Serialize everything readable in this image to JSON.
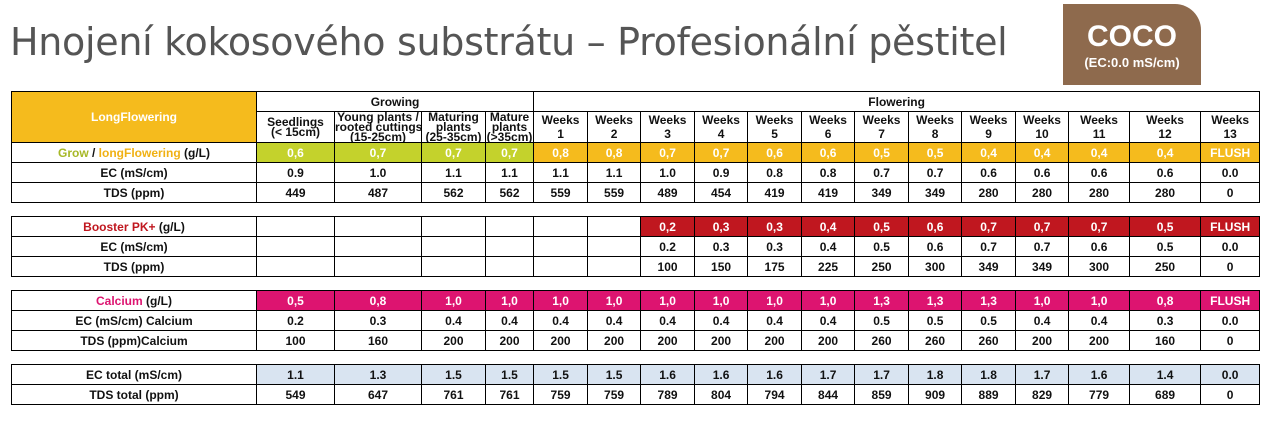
{
  "title": "Hnojení kokosového substrátu – Profesionální pěstitel",
  "badge": {
    "main": "COCO",
    "sub": "(EC:0.0 mS/cm)"
  },
  "brand": "LongFlowering",
  "groups": {
    "growing": "Growing",
    "flowering": "Flowering"
  },
  "stages": [
    "Seedlings\n(< 15cm)",
    "Young plants /\nrooted cuttings\n(15-25cm)",
    "Maturing\nplants\n(25-35cm)",
    "Mature\nplants\n(>35cm)"
  ],
  "weeks": [
    "Weeks\n1",
    "Weeks\n2",
    "Weeks\n3",
    "Weeks\n4",
    "Weeks\n5",
    "Weeks\n6",
    "Weeks\n7",
    "Weeks\n8",
    "Weeks\n9",
    "Weeks\n10",
    "Weeks\n11",
    "Weeks\n12",
    "Weeks\n13"
  ],
  "grow": {
    "label_a": "Grow",
    "label_sep": " / ",
    "label_b": "longFlowering",
    "label_unit": " (g/L)",
    "values": [
      "0,6",
      "0,7",
      "0,7",
      "0,7",
      "0,8",
      "0,8",
      "0,7",
      "0,7",
      "0,6",
      "0,6",
      "0,5",
      "0,5",
      "0,4",
      "0,4",
      "0,4",
      "0,4",
      "FLUSH"
    ],
    "ec_label": "EC (mS/cm)",
    "ec": [
      "0.9",
      "1.0",
      "1.1",
      "1.1",
      "1.1",
      "1.1",
      "1.0",
      "0.9",
      "0.8",
      "0.8",
      "0.7",
      "0.7",
      "0.6",
      "0.6",
      "0.6",
      "0.6",
      "0.0"
    ],
    "tds_label": "TDS (ppm)",
    "tds": [
      "449",
      "487",
      "562",
      "562",
      "559",
      "559",
      "489",
      "454",
      "419",
      "419",
      "349",
      "349",
      "280",
      "280",
      "280",
      "280",
      "0"
    ]
  },
  "booster": {
    "label_a": "Booster PK+",
    "label_unit": " (g/L)",
    "values": [
      "",
      "",
      "",
      "",
      "",
      "",
      "0,2",
      "0,3",
      "0,3",
      "0,4",
      "0,5",
      "0,6",
      "0,7",
      "0,7",
      "0,7",
      "0,5",
      "FLUSH"
    ],
    "ec_label": "EC (mS/cm)",
    "ec": [
      "",
      "",
      "",
      "",
      "",
      "",
      "0.2",
      "0.3",
      "0.3",
      "0.4",
      "0.5",
      "0.6",
      "0.7",
      "0.7",
      "0.6",
      "0.5",
      "0.0"
    ],
    "tds_label": "TDS (ppm)",
    "tds": [
      "",
      "",
      "",
      "",
      "",
      "",
      "100",
      "150",
      "175",
      "225",
      "250",
      "300",
      "349",
      "349",
      "300",
      "250",
      "0"
    ]
  },
  "calcium": {
    "label_a": "Calcium",
    "label_unit": " (g/L)",
    "values": [
      "0,5",
      "0,8",
      "1,0",
      "1,0",
      "1,0",
      "1,0",
      "1,0",
      "1,0",
      "1,0",
      "1,0",
      "1,3",
      "1,3",
      "1,3",
      "1,0",
      "1,0",
      "0,8",
      "FLUSH"
    ],
    "ec_label": "EC (mS/cm) Calcium",
    "ec": [
      "0.2",
      "0.3",
      "0.4",
      "0.4",
      "0.4",
      "0.4",
      "0.4",
      "0.4",
      "0.4",
      "0.4",
      "0.5",
      "0.5",
      "0.5",
      "0.4",
      "0.4",
      "0.3",
      "0.0"
    ],
    "tds_label": "TDS (ppm)Calcium",
    "tds": [
      "100",
      "160",
      "200",
      "200",
      "200",
      "200",
      "200",
      "200",
      "200",
      "200",
      "260",
      "260",
      "260",
      "200",
      "200",
      "160",
      "0"
    ]
  },
  "totals": {
    "ec_label": "EC total (mS/cm)",
    "ec": [
      "1.1",
      "1.3",
      "1.5",
      "1.5",
      "1.5",
      "1.5",
      "1.6",
      "1.6",
      "1.6",
      "1.7",
      "1.7",
      "1.8",
      "1.8",
      "1.7",
      "1.6",
      "1.4",
      "0.0"
    ],
    "tds_label": "TDS total (ppm)",
    "tds": [
      "549",
      "647",
      "761",
      "761",
      "759",
      "759",
      "789",
      "804",
      "794",
      "844",
      "859",
      "909",
      "889",
      "829",
      "779",
      "689",
      "0"
    ]
  }
}
